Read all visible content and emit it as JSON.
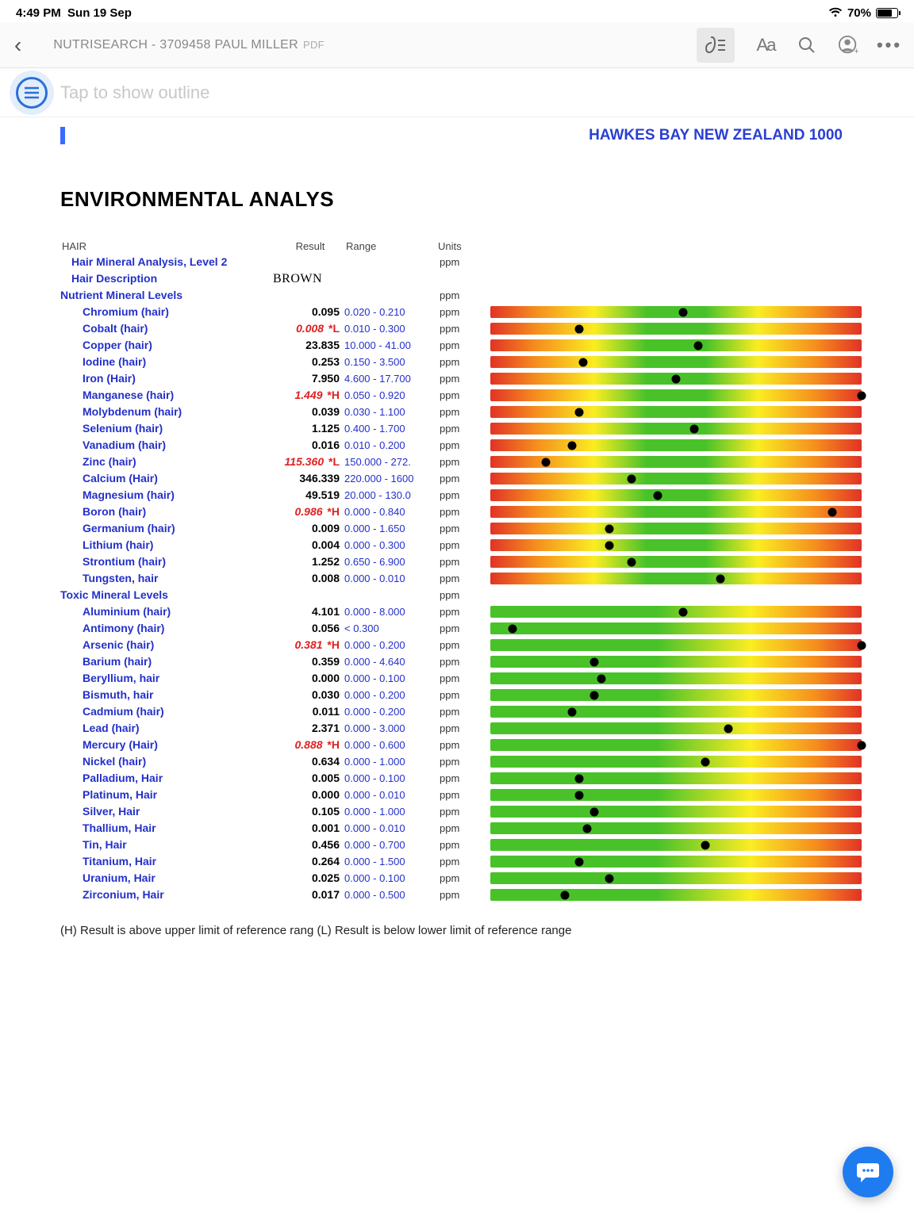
{
  "status": {
    "time": "4:49 PM",
    "date": "Sun 19 Sep",
    "battery": "70%"
  },
  "toolbar": {
    "title": "NUTRISEARCH - 3709458 PAUL MILLER",
    "ext": "PDF"
  },
  "outline": {
    "hint": "Tap to show outline"
  },
  "doc": {
    "location": "HAWKES BAY NEW ZEALAND 1000",
    "title": "ENVIRONMENTAL ANALYS",
    "hdr": {
      "c1": "HAIR",
      "c2": "Result",
      "c3": "Range",
      "c4": "Units"
    },
    "footnote": "(H) Result is above upper limit of reference rang (L) Result is below lower limit of reference range"
  },
  "rows": [
    {
      "type": "section",
      "indent": 1,
      "name": "Hair Mineral Analysis, Level 2",
      "units": "ppm"
    },
    {
      "type": "text",
      "indent": 1,
      "name": "Hair Description",
      "text": "BROWN"
    },
    {
      "type": "section",
      "indent": 0,
      "name": "Nutrient Mineral Levels",
      "units": "ppm"
    },
    {
      "type": "n",
      "indent": 2,
      "name": "Chromium (hair)",
      "result": "0.095",
      "range": "0.020 - 0.210",
      "units": "ppm",
      "pos": 52
    },
    {
      "type": "n",
      "indent": 2,
      "name": "Cobalt (hair)",
      "result": "0.008",
      "flag": "*L",
      "range": "0.010 - 0.300",
      "units": "ppm",
      "pos": 24
    },
    {
      "type": "n",
      "indent": 2,
      "name": "Copper (hair)",
      "result": "23.835",
      "range": "10.000 - 41.00",
      "units": "ppm",
      "pos": 56
    },
    {
      "type": "n",
      "indent": 2,
      "name": "Iodine (hair)",
      "result": "0.253",
      "range": "0.150 - 3.500",
      "units": "ppm",
      "pos": 25
    },
    {
      "type": "n",
      "indent": 2,
      "name": "Iron (Hair)",
      "result": "7.950",
      "range": "4.600 - 17.700",
      "units": "ppm",
      "pos": 50
    },
    {
      "type": "n",
      "indent": 2,
      "name": "Manganese (hair)",
      "result": "1.449",
      "flag": "*H",
      "range": "0.050 - 0.920",
      "units": "ppm",
      "pos": 100
    },
    {
      "type": "n",
      "indent": 2,
      "name": "Molybdenum (hair)",
      "result": "0.039",
      "range": "0.030 - 1.100",
      "units": "ppm",
      "pos": 24
    },
    {
      "type": "n",
      "indent": 2,
      "name": "Selenium (hair)",
      "result": "1.125",
      "range": "0.400 - 1.700",
      "units": "ppm",
      "pos": 55
    },
    {
      "type": "n",
      "indent": 2,
      "name": "Vanadium (hair)",
      "result": "0.016",
      "range": "0.010 - 0.200",
      "units": "ppm",
      "pos": 22
    },
    {
      "type": "n",
      "indent": 2,
      "name": "Zinc (hair)",
      "result": "115.360",
      "flag": "*L",
      "range": "150.000 - 272.",
      "units": "ppm",
      "pos": 15
    },
    {
      "type": "n",
      "indent": 2,
      "name": "Calcium (Hair)",
      "result": "346.339",
      "range": "220.000 - 1600",
      "units": "ppm",
      "pos": 38
    },
    {
      "type": "n",
      "indent": 2,
      "name": "Magnesium (hair)",
      "result": "49.519",
      "range": "20.000 - 130.0",
      "units": "ppm",
      "pos": 45
    },
    {
      "type": "n",
      "indent": 2,
      "name": "Boron (hair)",
      "result": "0.986",
      "flag": "*H",
      "range": "0.000 - 0.840",
      "units": "ppm",
      "pos": 92
    },
    {
      "type": "n",
      "indent": 2,
      "name": "Germanium (hair)",
      "result": "0.009",
      "range": "0.000 - 1.650",
      "units": "ppm",
      "pos": 32
    },
    {
      "type": "n",
      "indent": 2,
      "name": "Lithium (hair)",
      "result": "0.004",
      "range": "0.000 - 0.300",
      "units": "ppm",
      "pos": 32
    },
    {
      "type": "n",
      "indent": 2,
      "name": "Strontium (hair)",
      "result": "1.252",
      "range": "0.650 - 6.900",
      "units": "ppm",
      "pos": 38
    },
    {
      "type": "n",
      "indent": 2,
      "name": "Tungsten, hair",
      "result": "0.008",
      "range": "0.000 - 0.010",
      "units": "ppm",
      "pos": 62
    },
    {
      "type": "section",
      "indent": 0,
      "name": "Toxic Mineral Levels",
      "units": "ppm"
    },
    {
      "type": "t",
      "indent": 2,
      "name": "Aluminium (hair)",
      "result": "4.101",
      "range": "0.000 - 8.000",
      "units": "ppm",
      "pos": 52
    },
    {
      "type": "t",
      "indent": 2,
      "name": "Antimony (hair)",
      "result": "0.056",
      "range": "< 0.300",
      "units": "ppm",
      "pos": 6
    },
    {
      "type": "t",
      "indent": 2,
      "name": "Arsenic (hair)",
      "result": "0.381",
      "flag": "*H",
      "range": "0.000 - 0.200",
      "units": "ppm",
      "pos": 100
    },
    {
      "type": "t",
      "indent": 2,
      "name": "Barium (hair)",
      "result": "0.359",
      "range": "0.000 - 4.640",
      "units": "ppm",
      "pos": 28
    },
    {
      "type": "t",
      "indent": 2,
      "name": "Beryllium, hair",
      "result": "0.000",
      "range": "0.000 - 0.100",
      "units": "ppm",
      "pos": 30
    },
    {
      "type": "t",
      "indent": 2,
      "name": "Bismuth, hair",
      "result": "0.030",
      "range": "0.000 - 0.200",
      "units": "ppm",
      "pos": 28
    },
    {
      "type": "t",
      "indent": 2,
      "name": "Cadmium (hair)",
      "result": "0.011",
      "range": "0.000 - 0.200",
      "units": "ppm",
      "pos": 22
    },
    {
      "type": "t",
      "indent": 2,
      "name": "Lead (hair)",
      "result": "2.371",
      "range": "0.000 - 3.000",
      "units": "ppm",
      "pos": 64
    },
    {
      "type": "t",
      "indent": 2,
      "name": "Mercury (Hair)",
      "result": "0.888",
      "flag": "*H",
      "range": "0.000 - 0.600",
      "units": "ppm",
      "pos": 100
    },
    {
      "type": "t",
      "indent": 2,
      "name": "Nickel (hair)",
      "result": "0.634",
      "range": "0.000 - 1.000",
      "units": "ppm",
      "pos": 58
    },
    {
      "type": "t",
      "indent": 2,
      "name": "Palladium, Hair",
      "result": "0.005",
      "range": "0.000 - 0.100",
      "units": "ppm",
      "pos": 24
    },
    {
      "type": "t",
      "indent": 2,
      "name": "Platinum, Hair",
      "result": "0.000",
      "range": "0.000 - 0.010",
      "units": "ppm",
      "pos": 24
    },
    {
      "type": "t",
      "indent": 2,
      "name": "Silver, Hair",
      "result": "0.105",
      "range": "0.000 - 1.000",
      "units": "ppm",
      "pos": 28
    },
    {
      "type": "t",
      "indent": 2,
      "name": "Thallium, Hair",
      "result": "0.001",
      "range": "0.000 - 0.010",
      "units": "ppm",
      "pos": 26
    },
    {
      "type": "t",
      "indent": 2,
      "name": "Tin, Hair",
      "result": "0.456",
      "range": "0.000 - 0.700",
      "units": "ppm",
      "pos": 58
    },
    {
      "type": "t",
      "indent": 2,
      "name": "Titanium, Hair",
      "result": "0.264",
      "range": "0.000 - 1.500",
      "units": "ppm",
      "pos": 24
    },
    {
      "type": "t",
      "indent": 2,
      "name": "Uranium, Hair",
      "result": "0.025",
      "range": "0.000 - 0.100",
      "units": "ppm",
      "pos": 32
    },
    {
      "type": "t",
      "indent": 2,
      "name": "Zirconium, Hair",
      "result": "0.017",
      "range": "0.000 - 0.500",
      "units": "ppm",
      "pos": 20
    }
  ]
}
